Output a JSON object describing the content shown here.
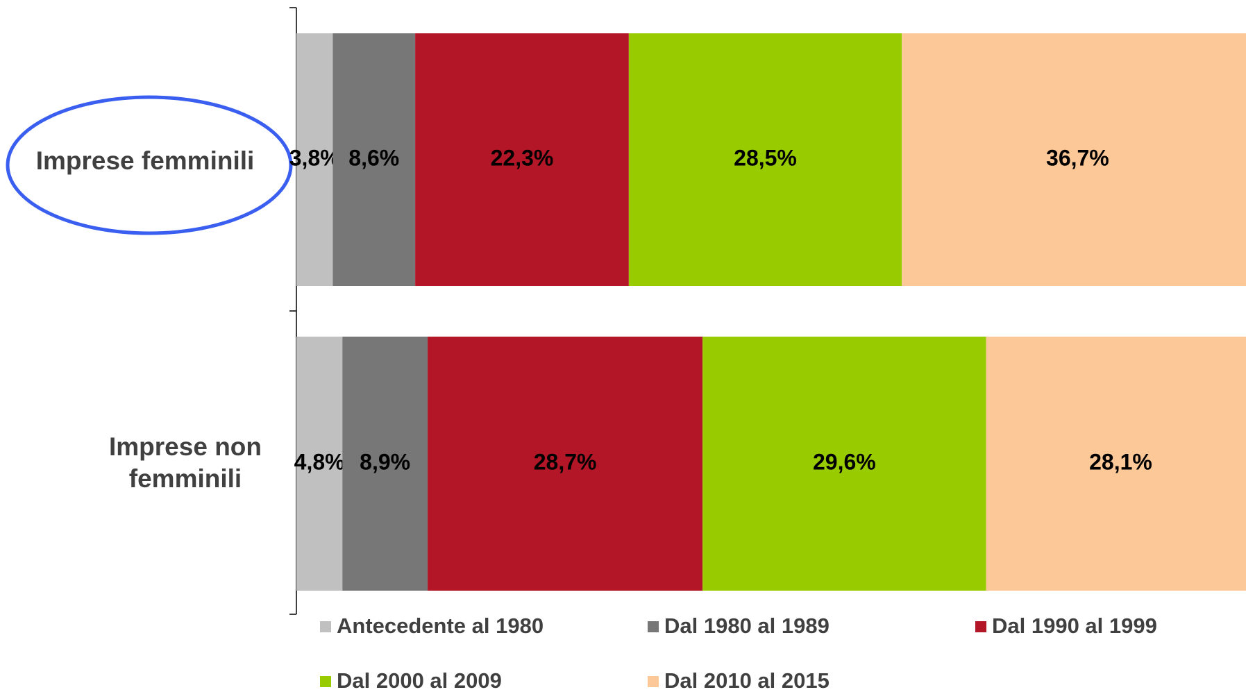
{
  "chart_data": {
    "type": "stacked_barh",
    "categories": [
      "Imprese femminili",
      "Imprese non femminili"
    ],
    "xlim": [
      0,
      100
    ],
    "series": [
      {
        "name": "Antecedente al 1980",
        "color": "#c0c0c0",
        "values": [
          3.8,
          4.8
        ],
        "value_labels": [
          "3,8%",
          "4,8%"
        ]
      },
      {
        "name": "Dal 1980 al 1989",
        "color": "#777777",
        "values": [
          8.6,
          8.9
        ],
        "value_labels": [
          "8,6%",
          "8,9%"
        ]
      },
      {
        "name": "Dal 1990 al 1999",
        "color": "#b31627",
        "values": [
          22.3,
          28.7
        ],
        "value_labels": [
          "22,3%",
          "28,7%"
        ]
      },
      {
        "name": "Dal 2000 al 2009",
        "color": "#99cc00",
        "values": [
          28.5,
          29.6
        ],
        "value_labels": [
          "28,5%",
          "29,6%"
        ]
      },
      {
        "name": "Dal 2010 al 2015",
        "color": "#fdc897",
        "values": [
          36.7,
          28.1
        ],
        "value_labels": [
          "36,7%",
          "28,1%"
        ]
      }
    ]
  }
}
